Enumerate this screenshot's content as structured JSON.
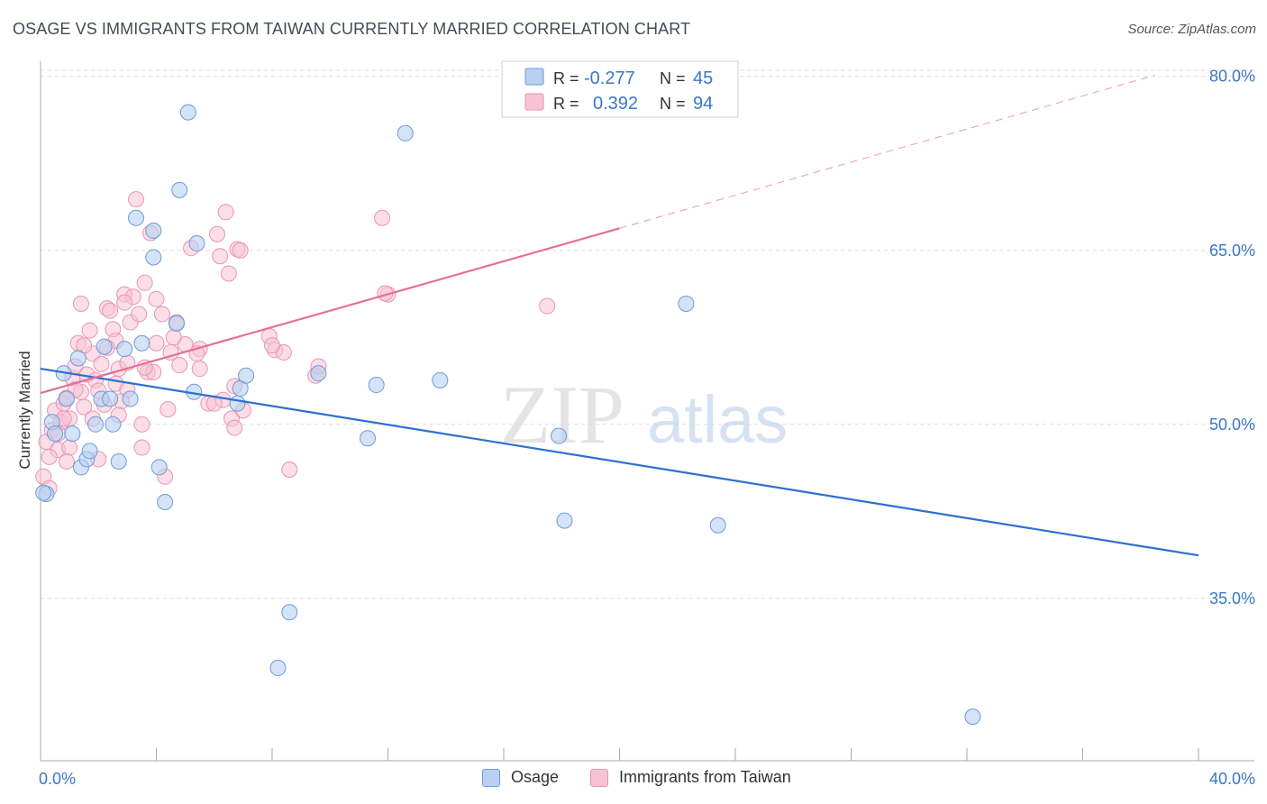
{
  "title": "OSAGE VS IMMIGRANTS FROM TAIWAN CURRENTLY MARRIED CORRELATION CHART",
  "source": "Source: ZipAtlas.com",
  "watermark": {
    "zip": "ZIP",
    "atlas": "atlas"
  },
  "colors": {
    "blue_fill": "#b8d0f2",
    "blue_stroke": "#6f9ad6",
    "blue_line": "#2e6fd1",
    "pink_fill": "#f7c3d4",
    "pink_stroke": "#e895b1",
    "pink_line": "#e56f97",
    "tick_label": "#3b77c9",
    "grid": "#dddddd"
  },
  "legend": [
    {
      "r_label": "R =",
      "r_value": "-0.277",
      "n_label": "N =",
      "n_value": "45"
    },
    {
      "r_label": "R =",
      "r_value": "0.392",
      "n_label": "N =",
      "n_value": "94"
    }
  ],
  "bottom_legend": [
    "Osage",
    "Immigrants from Taiwan"
  ],
  "chart_data": {
    "type": "scatter",
    "title": "OSAGE VS IMMIGRANTS FROM TAIWAN CURRENTLY MARRIED CORRELATION CHART",
    "xlabel": "",
    "ylabel": "Currently Married",
    "xlim": [
      0,
      40
    ],
    "ylim": [
      21,
      82
    ],
    "x_tick_labels": [
      {
        "value": 0,
        "label": "0.0%"
      },
      {
        "value": 40,
        "label": "40.0%"
      }
    ],
    "y_tick_labels": [
      {
        "value": 35,
        "label": "35.0%"
      },
      {
        "value": 50,
        "label": "50.0%"
      },
      {
        "value": 65,
        "label": "65.0%"
      },
      {
        "value": 80,
        "label": "80.0%"
      }
    ],
    "series": [
      {
        "name": "Osage",
        "r": -0.277,
        "n": 45,
        "trend": {
          "x": [
            0,
            40
          ],
          "y": [
            54.8,
            38.7
          ]
        },
        "points": [
          [
            0.2,
            44.0
          ],
          [
            0.4,
            50.2
          ],
          [
            0.5,
            49.2
          ],
          [
            0.8,
            54.4
          ],
          [
            0.9,
            52.2
          ],
          [
            1.1,
            49.2
          ],
          [
            1.3,
            55.7
          ],
          [
            1.4,
            46.3
          ],
          [
            1.6,
            47.0
          ],
          [
            1.7,
            47.7
          ],
          [
            1.9,
            50.0
          ],
          [
            2.1,
            52.2
          ],
          [
            2.2,
            56.7
          ],
          [
            2.4,
            52.2
          ],
          [
            2.5,
            50.0
          ],
          [
            2.7,
            46.8
          ],
          [
            2.9,
            56.5
          ],
          [
            3.1,
            52.2
          ],
          [
            3.3,
            67.8
          ],
          [
            3.5,
            57.0
          ],
          [
            3.9,
            66.7
          ],
          [
            3.9,
            64.4
          ],
          [
            4.1,
            46.3
          ],
          [
            4.3,
            43.3
          ],
          [
            4.7,
            58.7
          ],
          [
            4.8,
            70.2
          ],
          [
            5.1,
            76.9
          ],
          [
            5.3,
            52.8
          ],
          [
            5.4,
            65.6
          ],
          [
            6.8,
            51.8
          ],
          [
            6.9,
            53.1
          ],
          [
            7.1,
            54.2
          ],
          [
            8.2,
            29.0
          ],
          [
            8.6,
            33.8
          ],
          [
            9.6,
            54.4
          ],
          [
            11.3,
            48.8
          ],
          [
            11.6,
            53.4
          ],
          [
            12.6,
            75.1
          ],
          [
            13.8,
            53.8
          ],
          [
            17.9,
            49.0
          ],
          [
            18.1,
            41.7
          ],
          [
            22.3,
            60.4
          ],
          [
            23.4,
            41.3
          ],
          [
            32.2,
            24.8
          ],
          [
            0.1,
            44.1
          ]
        ]
      },
      {
        "name": "Immigrants from Taiwan",
        "r": 0.392,
        "n": 94,
        "trend": {
          "x": [
            0,
            20
          ],
          "y": [
            52.7,
            66.9
          ]
        },
        "trend_dashed": {
          "x": [
            20,
            38.5
          ],
          "y": [
            66.9,
            80.1
          ]
        },
        "points": [
          [
            0.1,
            45.5
          ],
          [
            0.2,
            48.5
          ],
          [
            0.3,
            44.5
          ],
          [
            0.4,
            49.5
          ],
          [
            0.5,
            51.2
          ],
          [
            0.6,
            47.8
          ],
          [
            0.7,
            50.2
          ],
          [
            0.8,
            51.8
          ],
          [
            0.9,
            52.3
          ],
          [
            1.0,
            50.5
          ],
          [
            1.1,
            54.0
          ],
          [
            1.2,
            55.0
          ],
          [
            1.3,
            57.0
          ],
          [
            1.4,
            52.8
          ],
          [
            1.5,
            51.5
          ],
          [
            1.6,
            54.3
          ],
          [
            1.7,
            58.1
          ],
          [
            1.8,
            56.1
          ],
          [
            1.9,
            53.8
          ],
          [
            2.0,
            52.9
          ],
          [
            2.1,
            55.2
          ],
          [
            2.2,
            51.7
          ],
          [
            2.3,
            60.0
          ],
          [
            2.4,
            59.8
          ],
          [
            2.5,
            58.2
          ],
          [
            2.6,
            57.2
          ],
          [
            2.7,
            54.8
          ],
          [
            2.8,
            52.0
          ],
          [
            2.9,
            61.2
          ],
          [
            3.0,
            55.3
          ],
          [
            3.1,
            58.8
          ],
          [
            3.2,
            61.0
          ],
          [
            3.3,
            69.4
          ],
          [
            3.4,
            59.5
          ],
          [
            3.5,
            50.0
          ],
          [
            3.6,
            62.2
          ],
          [
            3.7,
            54.5
          ],
          [
            3.8,
            66.5
          ],
          [
            4.0,
            57.0
          ],
          [
            4.2,
            59.5
          ],
          [
            4.3,
            45.5
          ],
          [
            4.4,
            51.3
          ],
          [
            4.5,
            56.2
          ],
          [
            4.7,
            58.8
          ],
          [
            4.8,
            55.1
          ],
          [
            5.0,
            56.9
          ],
          [
            5.2,
            65.2
          ],
          [
            5.5,
            56.5
          ],
          [
            5.8,
            51.8
          ],
          [
            6.1,
            66.4
          ],
          [
            6.2,
            64.5
          ],
          [
            6.3,
            52.1
          ],
          [
            6.4,
            68.3
          ],
          [
            6.5,
            63.0
          ],
          [
            6.6,
            50.5
          ],
          [
            6.7,
            49.7
          ],
          [
            6.8,
            65.1
          ],
          [
            6.9,
            65.0
          ],
          [
            7.0,
            51.2
          ],
          [
            7.9,
            57.6
          ],
          [
            8.1,
            56.4
          ],
          [
            8.4,
            56.2
          ],
          [
            8.6,
            46.1
          ],
          [
            9.5,
            54.2
          ],
          [
            9.6,
            55.0
          ],
          [
            11.8,
            67.8
          ],
          [
            12.0,
            61.2
          ],
          [
            17.5,
            60.2
          ],
          [
            1.0,
            48.0
          ],
          [
            2.0,
            47.0
          ],
          [
            3.5,
            48.0
          ],
          [
            0.8,
            50.5
          ],
          [
            1.2,
            53.0
          ],
          [
            2.6,
            53.5
          ],
          [
            3.9,
            54.5
          ],
          [
            0.6,
            49.2
          ],
          [
            1.5,
            56.8
          ],
          [
            2.3,
            56.6
          ],
          [
            3.0,
            53.0
          ],
          [
            4.0,
            60.8
          ],
          [
            1.4,
            60.4
          ],
          [
            2.9,
            60.5
          ],
          [
            6.0,
            51.8
          ],
          [
            5.5,
            54.8
          ],
          [
            0.3,
            47.2
          ],
          [
            0.9,
            46.8
          ],
          [
            1.8,
            50.5
          ],
          [
            2.7,
            50.8
          ],
          [
            3.6,
            54.9
          ],
          [
            4.6,
            57.5
          ],
          [
            5.4,
            56.1
          ],
          [
            6.7,
            53.3
          ],
          [
            8.0,
            56.8
          ],
          [
            11.9,
            61.3
          ]
        ]
      }
    ]
  }
}
